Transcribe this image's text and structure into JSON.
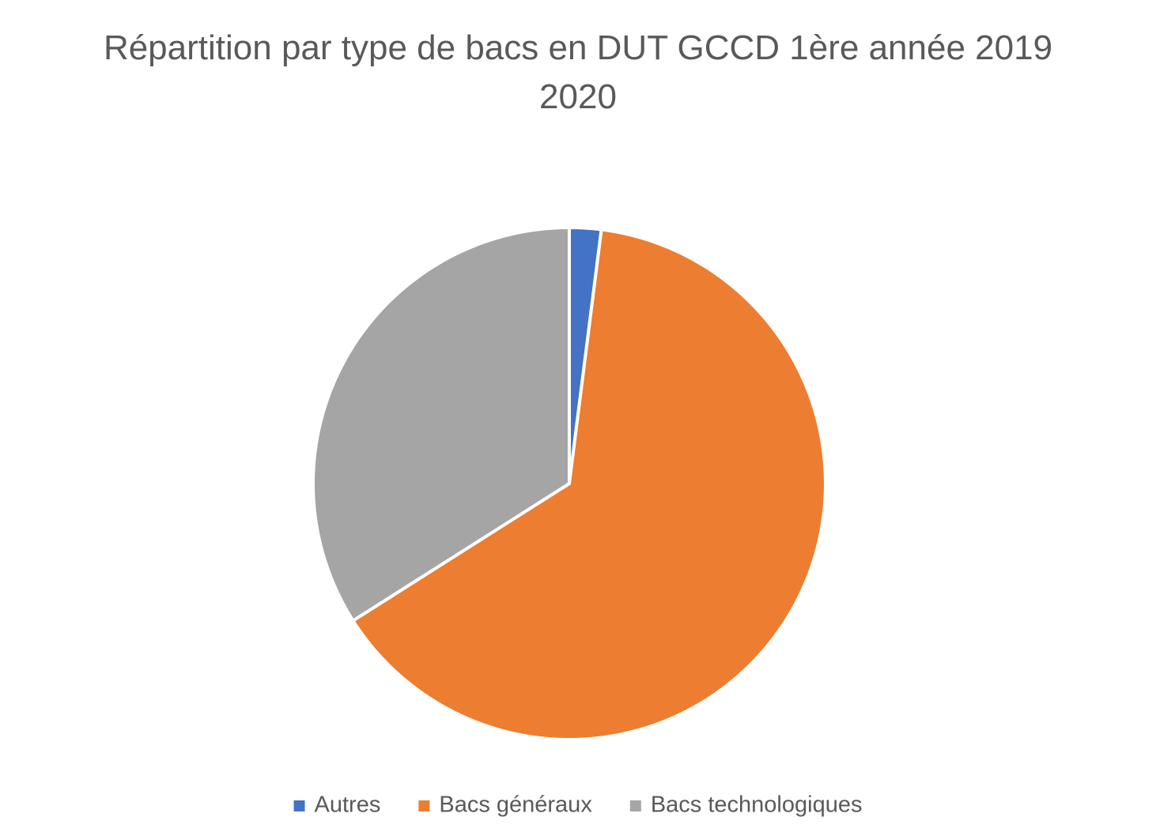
{
  "chart_data": {
    "type": "pie",
    "title": "Répartition par type de bacs en DUT GCCD 1ère année 2019 2020",
    "categories": [
      "Autres",
      "Bacs généraux",
      "Bacs technologiques"
    ],
    "values": [
      2,
      64,
      34
    ],
    "colors": [
      "#4472c4",
      "#ed7d31",
      "#a5a5a5"
    ],
    "legend": "bottom"
  }
}
